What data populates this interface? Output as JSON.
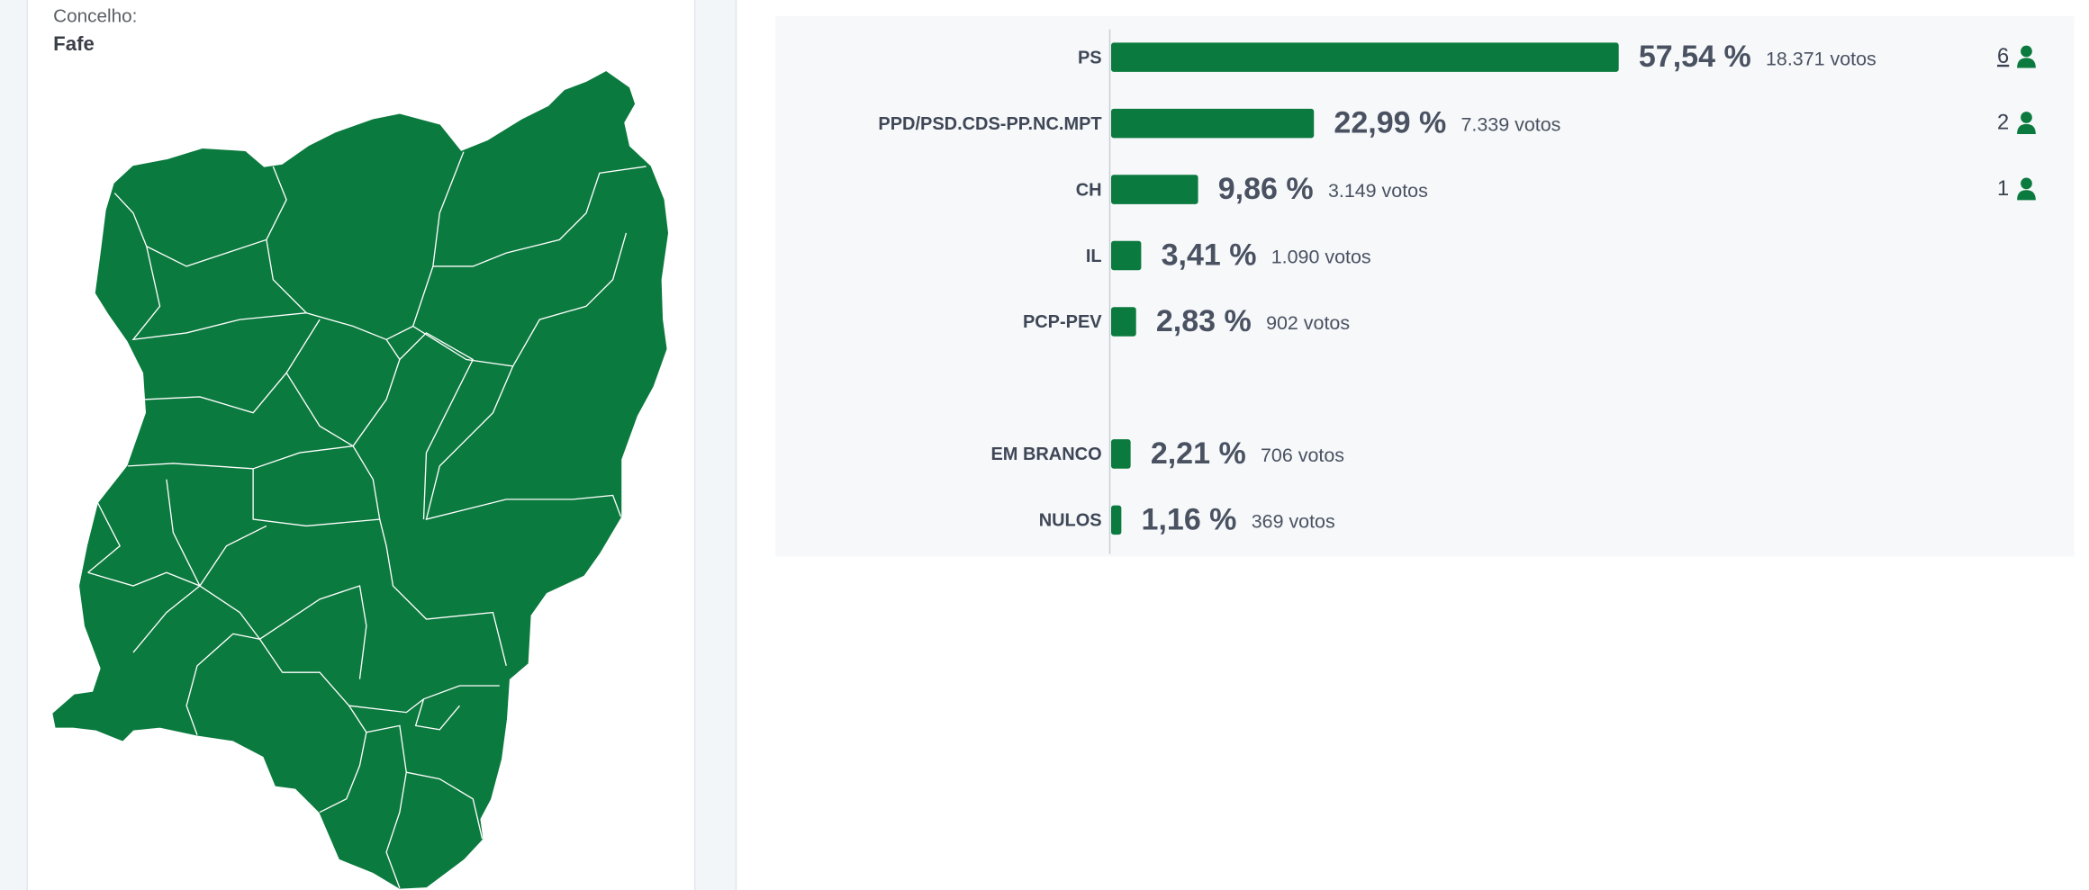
{
  "location": {
    "label": "Concelho:",
    "name": "Fafe"
  },
  "chart_data": {
    "type": "bar",
    "orientation": "horizontal",
    "color": "#0b7a3e",
    "categories": [
      "PS",
      "PPD/PSD.CDS-PP.NC.MPT",
      "CH",
      "IL",
      "PCP-PEV",
      null,
      "EM BRANCO",
      "NULOS"
    ],
    "values": [
      57.54,
      22.99,
      9.86,
      3.41,
      2.83,
      null,
      2.21,
      1.16
    ],
    "value_labels": [
      "57,54 %",
      "22,99 %",
      "9,86 %",
      "3,41 %",
      "2,83 %",
      null,
      "2,21 %",
      "1,16 %"
    ],
    "votes_labels": [
      "18.371 votos",
      "7.339 votos",
      "3.149 votos",
      "1.090 votos",
      "902 votos",
      null,
      "706 votos",
      "369 votos"
    ],
    "seats": [
      6,
      2,
      1,
      null,
      null,
      null,
      null,
      null
    ]
  }
}
